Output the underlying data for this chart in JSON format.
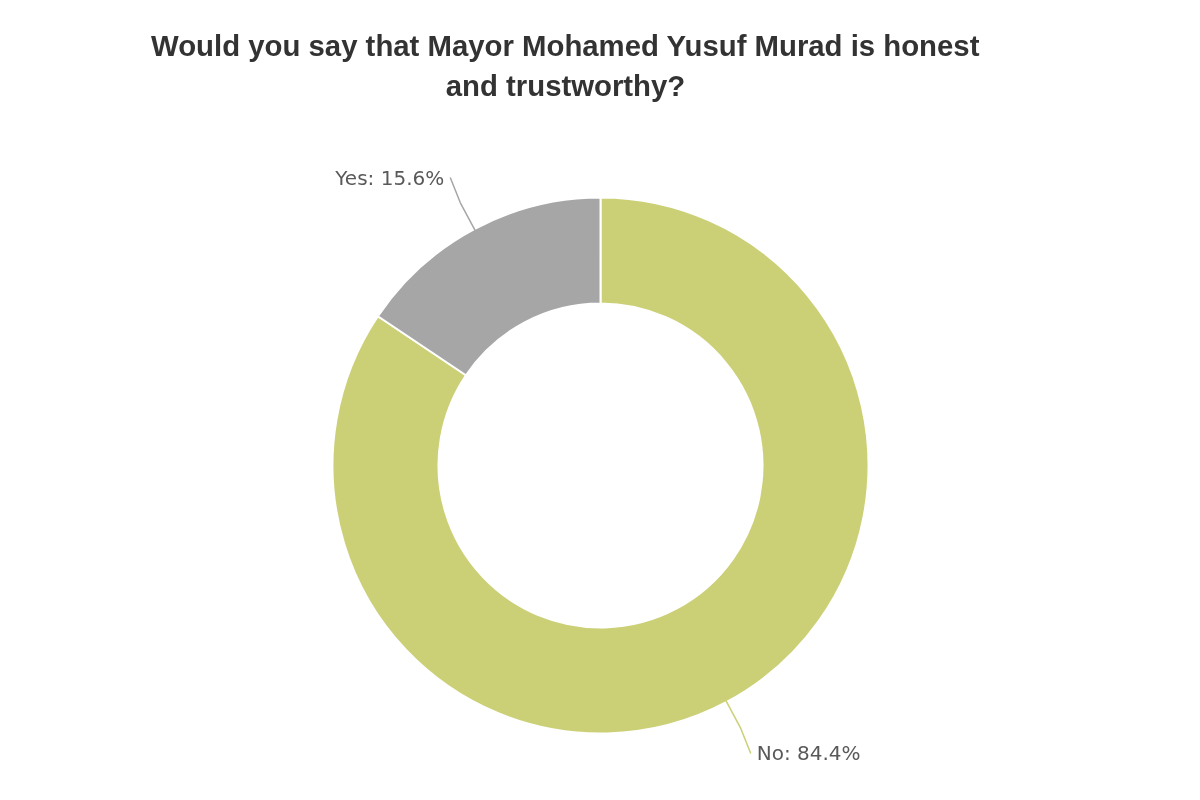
{
  "chart_data": {
    "type": "donut",
    "title": "Would you say that Mayor Mohamed Yusuf Murad is honest and trustworthy?",
    "categories": [
      "No",
      "Yes"
    ],
    "values": [
      84.4,
      15.6
    ],
    "colors": [
      "#cbd077",
      "#a6a6a6"
    ],
    "value_labels": [
      "84.4%",
      "15.6%"
    ]
  }
}
